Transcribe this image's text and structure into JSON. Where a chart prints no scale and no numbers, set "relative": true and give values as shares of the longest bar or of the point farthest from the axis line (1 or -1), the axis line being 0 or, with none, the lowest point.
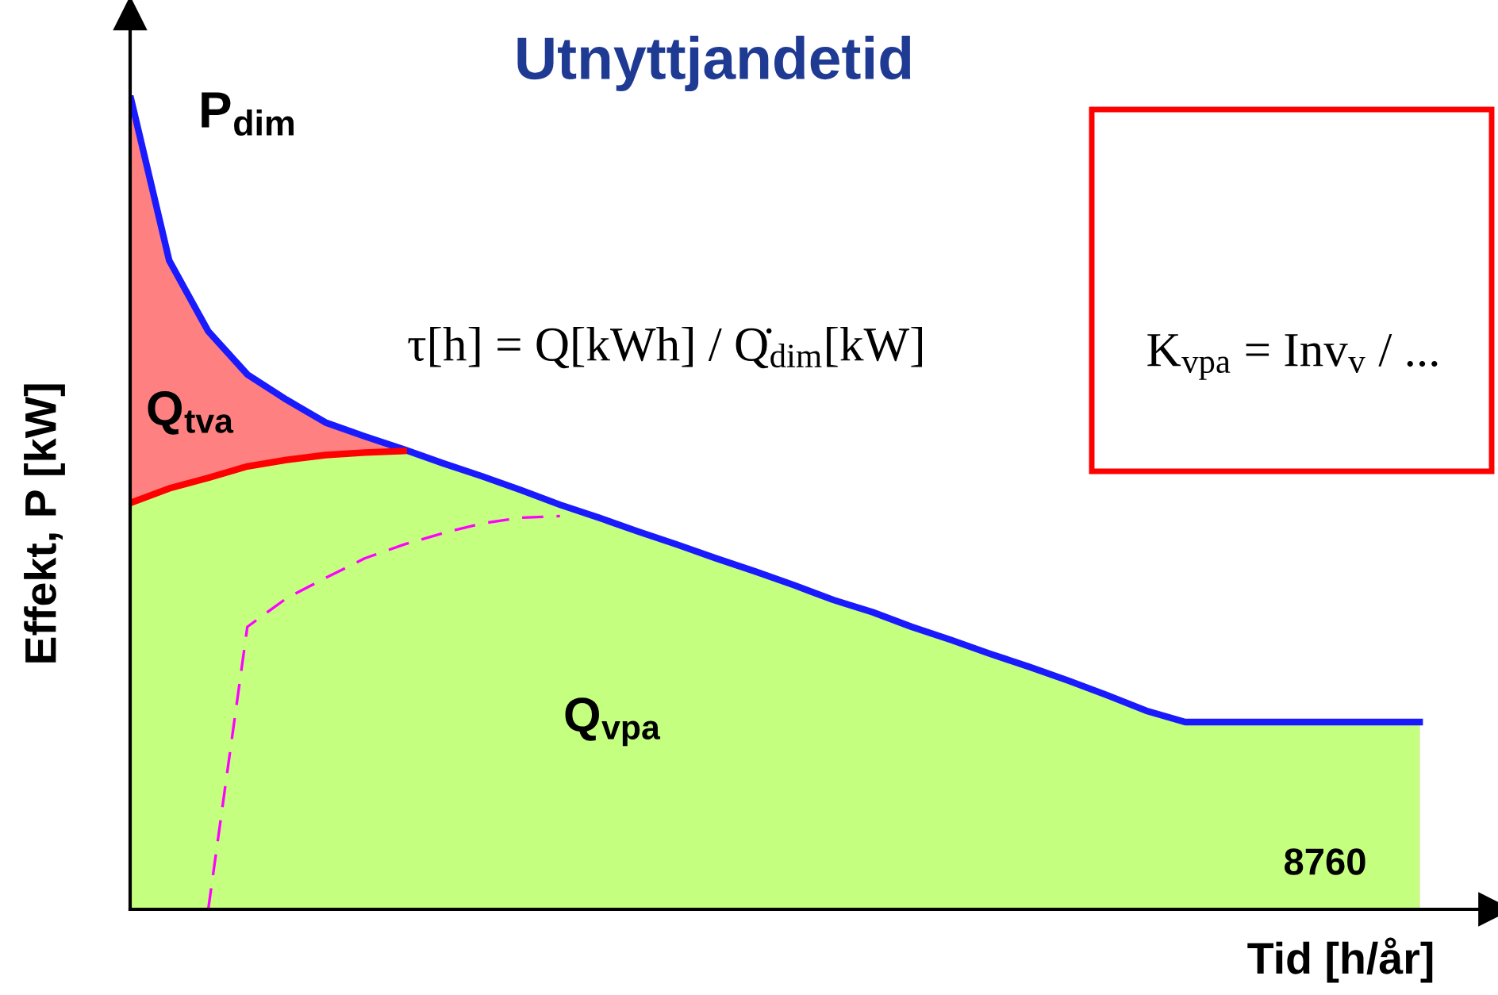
{
  "chart_data": {
    "type": "area",
    "title": "Utnyttjandetid",
    "xlabel": "Tid [h/år]",
    "ylabel": "Effekt, P [kW]",
    "relative": true,
    "categories": [
      null,
      null,
      null,
      null,
      null,
      null,
      null,
      null,
      null,
      null,
      null,
      null,
      null,
      null,
      null,
      null,
      null,
      null,
      null,
      null,
      null,
      null,
      null,
      null,
      null,
      null,
      null,
      null,
      null,
      null,
      null,
      null,
      null,
      null
    ],
    "series": [
      {
        "type": "area",
        "color": "#ff8080",
        "values": [
          1.0,
          0.797,
          0.71,
          0.657,
          0.626,
          0.598,
          0.581,
          0.565,
          0.548,
          0.532,
          0.515,
          0.497,
          0.481,
          0.464,
          0.448,
          0.431,
          0.415,
          0.398,
          0.38,
          0.365,
          0.347,
          0.331,
          0.314,
          0.298,
          0.281,
          0.263,
          0.244,
          0.23,
          0.23,
          0.23,
          0.23,
          0.23,
          0.23,
          0.23
        ]
      },
      {
        "type": "area",
        "color": "#c4ff80",
        "values": [
          0.499,
          0.517,
          0.53,
          0.544,
          0.552,
          0.558,
          0.561,
          0.563,
          0.548,
          0.532,
          0.515,
          0.497,
          0.481,
          0.464,
          0.448,
          0.431,
          0.415,
          0.398,
          0.38,
          0.365,
          0.347,
          0.331,
          0.314,
          0.298,
          0.281,
          0.263,
          0.244,
          0.23,
          0.23,
          0.23,
          0.23,
          0.23,
          0.23,
          0.23
        ]
      },
      {
        "type": "line",
        "color": "#1a1aff",
        "values": [
          1.0,
          0.797,
          0.71,
          0.657,
          0.626,
          0.598,
          0.581,
          0.565,
          0.548,
          0.532,
          0.515,
          0.497,
          0.481,
          0.464,
          0.448,
          0.431,
          0.415,
          0.398,
          0.38,
          0.365,
          0.347,
          0.331,
          0.314,
          0.298,
          0.281,
          0.263,
          0.244,
          0.23,
          0.23,
          0.23,
          0.23,
          0.23,
          0.23,
          0.23
        ]
      },
      {
        "type": "line",
        "color": "#ff0000",
        "values": [
          0.499,
          0.517,
          0.53,
          0.544,
          0.552,
          0.558,
          0.561,
          0.563,
          null,
          null,
          null,
          null,
          null,
          null,
          null,
          null,
          null,
          null,
          null,
          null,
          null,
          null,
          null,
          null,
          null,
          null,
          null,
          null,
          null,
          null,
          null,
          null,
          null,
          null
        ]
      },
      {
        "type": "line",
        "color": "#ff00ff",
        "line_style": "dashed",
        "values": [
          null,
          null,
          0,
          0.347,
          0.382,
          0.407,
          0.431,
          0.448,
          0.462,
          0.474,
          0.481,
          0.483,
          null,
          null,
          null,
          null,
          null,
          null,
          null,
          null,
          null,
          null,
          null,
          null,
          null,
          null,
          null,
          null,
          null,
          null,
          null,
          null,
          null,
          null
        ]
      }
    ],
    "annotations": [
      "P$_{dim}$",
      "Q$_{tva}$",
      "Q$_{vpa}$",
      "8760",
      "τ[h] = Q[kWh] / Q̇$_{dim}$[kW]",
      "K$_{vpa}$ = Inv$_{v}$ / ..."
    ]
  }
}
